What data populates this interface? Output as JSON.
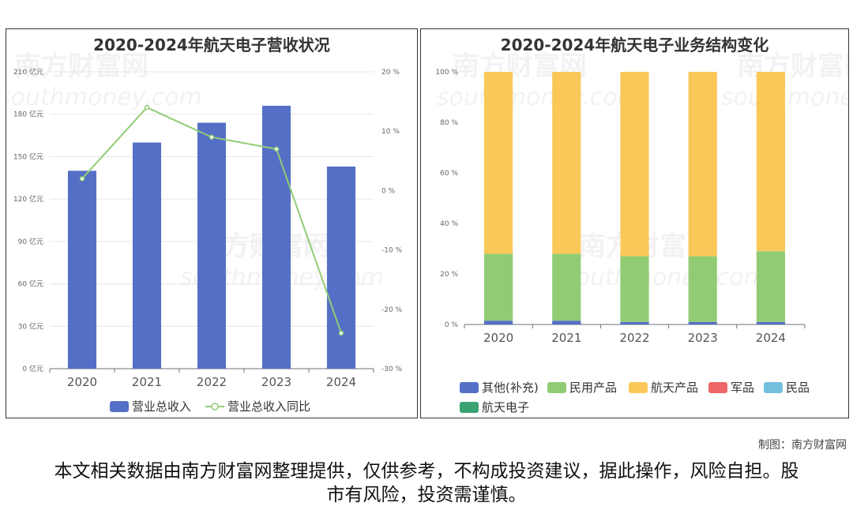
{
  "chart_data": [
    {
      "type": "bar",
      "title": "2020-2024年航天电子营收状况",
      "categories": [
        "2020",
        "2021",
        "2022",
        "2023",
        "2024"
      ],
      "series": [
        {
          "name": "营业总收入",
          "type": "bar",
          "axis": "left",
          "color": "#5470c6",
          "values": [
            140,
            160,
            174,
            186,
            143
          ]
        },
        {
          "name": "营业总收入同比",
          "type": "line",
          "axis": "right",
          "color": "#91cc75",
          "values": [
            2,
            14,
            9,
            7,
            -24
          ]
        }
      ],
      "left_axis": {
        "min": 0,
        "max": 210,
        "step": 30,
        "tick_labels": [
          "0 亿元",
          "30 亿元",
          "60 亿元",
          "90 亿元",
          "120 亿元",
          "150 亿元",
          "180 亿元",
          "210 亿元"
        ]
      },
      "right_axis": {
        "min": -30,
        "max": 20,
        "step": 10,
        "tick_labels": [
          "-30 %",
          "-20 %",
          "-10 %",
          "0 %",
          "10 %",
          "20 %"
        ]
      },
      "legend": [
        "营业总收入",
        "营业总收入同比"
      ],
      "legend_position": "bottom"
    },
    {
      "type": "bar",
      "stacked": true,
      "title": "2020-2024年航天电子业务结构变化",
      "categories": [
        "2020",
        "2021",
        "2022",
        "2023",
        "2024"
      ],
      "series": [
        {
          "name": "其他(补充)",
          "color": "#5470c6",
          "values": [
            1.5,
            1.5,
            1,
            1,
            1
          ]
        },
        {
          "name": "民用产品",
          "color": "#91cc75",
          "values": [
            26.5,
            26.5,
            26,
            26,
            28
          ]
        },
        {
          "name": "航天产品",
          "color": "#fac858",
          "values": [
            72,
            72,
            73,
            73,
            71
          ]
        },
        {
          "name": "军品",
          "color": "#ee6666",
          "values": [
            0,
            0,
            0,
            0,
            0
          ]
        },
        {
          "name": "民品",
          "color": "#73c0de",
          "values": [
            0,
            0,
            0,
            0,
            0
          ]
        },
        {
          "name": "航天电子",
          "color": "#3ba272",
          "values": [
            0,
            0,
            0,
            0,
            0
          ]
        }
      ],
      "y_axis": {
        "min": 0,
        "max": 100,
        "step": 20,
        "tick_labels": [
          "0 %",
          "20 %",
          "40 %",
          "60 %",
          "80 %",
          "100 %"
        ]
      },
      "legend": [
        "其他(补充)",
        "民用产品",
        "航天产品",
        "军品",
        "民品",
        "航天电子"
      ],
      "legend_position": "bottom"
    }
  ],
  "watermark": {
    "cn": "南方财富网",
    "en": "southmoney.com"
  },
  "credit": "制图：南方财富网",
  "disclaimer": "本文相关数据由南方财富网整理提供，仅供参考，不构成投资建议，据此操作，风险自担。股市有风险，投资需谨慎。"
}
